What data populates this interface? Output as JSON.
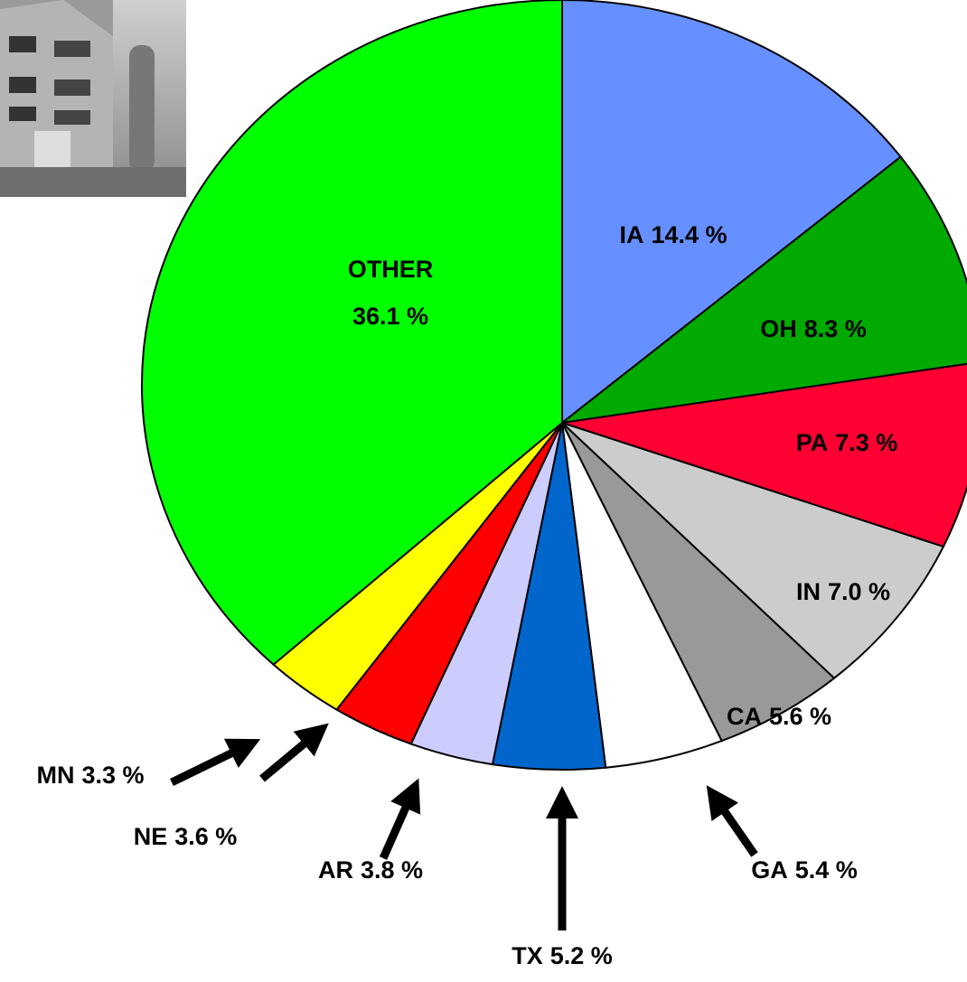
{
  "chart_data": {
    "type": "pie",
    "categories": [
      "IA",
      "OH",
      "PA",
      "IN",
      "CA",
      "GA",
      "TX",
      "AR",
      "NE",
      "MN",
      "OTHER"
    ],
    "values": [
      14.4,
      8.3,
      7.3,
      7.0,
      5.6,
      5.4,
      5.2,
      3.8,
      3.6,
      3.3,
      36.1
    ],
    "value_labels": [
      "14.4 %",
      "8.3 %",
      "7.3 %",
      "7.0 %",
      "5.6 %",
      "5.4 %",
      "5.2 %",
      "3.8 %",
      "3.6 %",
      "3.3 %",
      "36.1 %"
    ],
    "colors": [
      "#6690ff",
      "#00aa00",
      "#ff0033",
      "#cccccc",
      "#999999",
      "#ffffff",
      "#0066cc",
      "#ccccff",
      "#ff0000",
      "#ffff00",
      "#00ff00"
    ]
  }
}
